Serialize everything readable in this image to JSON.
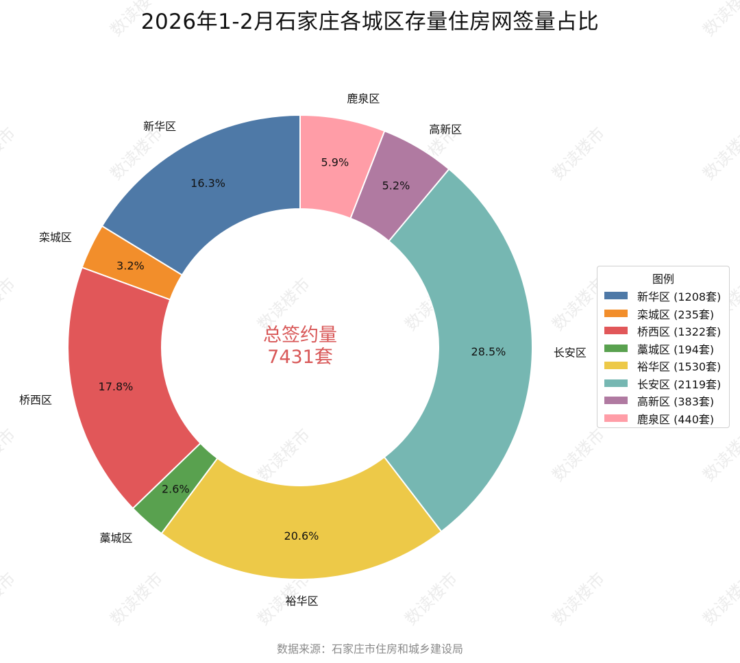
{
  "watermark": "数读楼市",
  "source_note": "数据来源：石家庄市住房和城乡建设局",
  "center": {
    "line1": "总签约量",
    "line2": "7431套",
    "color": "#d85757"
  },
  "legend": {
    "title": "图例"
  },
  "chart_data": {
    "type": "pie",
    "variant": "donut",
    "title": "2026年1-2月石家庄各城区存量住房网签量占比",
    "start_angle_deg": 90,
    "direction": "counterclockwise",
    "slices": [
      {
        "label": "新华区",
        "value": 1208,
        "percent": "16.3%",
        "legend": "新华区 (1208套)",
        "color": "#4e79a7"
      },
      {
        "label": "栾城区",
        "value": 235,
        "percent": "3.2%",
        "legend": "栾城区 (235套)",
        "color": "#f28e2b"
      },
      {
        "label": "桥西区",
        "value": 1322,
        "percent": "17.8%",
        "legend": "桥西区 (1322套)",
        "color": "#e15759"
      },
      {
        "label": "藁城区",
        "value": 194,
        "percent": "2.6%",
        "legend": "藁城区 (194套)",
        "color": "#59a14f"
      },
      {
        "label": "裕华区",
        "value": 1530,
        "percent": "20.6%",
        "legend": "裕华区 (1530套)",
        "color": "#edc948"
      },
      {
        "label": "长安区",
        "value": 2119,
        "percent": "28.5%",
        "legend": "长安区 (2119套)",
        "color": "#76b7b2"
      },
      {
        "label": "高新区",
        "value": 383,
        "percent": "5.2%",
        "legend": "高新区 (383套)",
        "color": "#b07aa1"
      },
      {
        "label": "鹿泉区",
        "value": 440,
        "percent": "5.9%",
        "legend": "鹿泉区 (440套)",
        "color": "#ff9da7"
      }
    ]
  }
}
